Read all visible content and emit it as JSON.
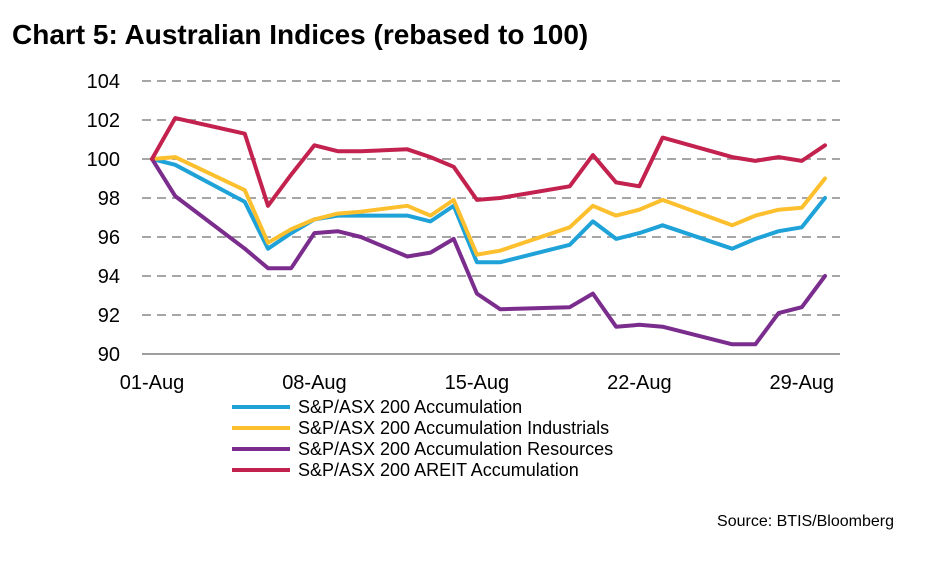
{
  "chart_data": {
    "type": "line",
    "title": "Chart 5: Australian Indices (rebased to 100)",
    "source": "Source: BTIS/Bloomberg",
    "xlabel": "",
    "ylabel": "",
    "ylim": [
      90,
      104
    ],
    "yticks": [
      "90",
      "92",
      "94",
      "96",
      "98",
      "100",
      "102",
      "104"
    ],
    "xticks": [
      {
        "day": 0,
        "label": "01-Aug"
      },
      {
        "day": 7,
        "label": "08-Aug"
      },
      {
        "day": 14,
        "label": "15-Aug"
      },
      {
        "day": 21,
        "label": "22-Aug"
      },
      {
        "day": 28,
        "label": "29-Aug"
      }
    ],
    "grid": true,
    "legend_position": "bottom",
    "x": [
      0,
      1,
      4,
      5,
      6,
      7,
      8,
      9,
      11,
      12,
      13,
      14,
      15,
      18,
      19,
      20,
      21,
      22,
      25,
      26,
      27,
      28,
      29
    ],
    "series": [
      {
        "name": "S&P/ASX 200 Accumulation",
        "color": "#1ea2d8",
        "values": [
          100,
          99.7,
          97.8,
          95.4,
          96.2,
          96.9,
          97.1,
          97.1,
          97.1,
          96.8,
          97.6,
          94.7,
          94.7,
          95.6,
          96.8,
          95.9,
          96.2,
          96.6,
          95.4,
          95.9,
          96.3,
          96.5,
          98.0
        ]
      },
      {
        "name": "S&P/ASX 200 Accumulation Industrials",
        "color": "#fcbf2e",
        "values": [
          100,
          100.1,
          98.4,
          95.7,
          96.4,
          96.9,
          97.2,
          97.3,
          97.6,
          97.1,
          97.9,
          95.1,
          95.3,
          96.5,
          97.6,
          97.1,
          97.4,
          97.9,
          96.6,
          97.1,
          97.4,
          97.5,
          99.0
        ]
      },
      {
        "name": "S&P/ASX 200 Accumulation Resources",
        "color": "#7b2d8e",
        "values": [
          100,
          98.1,
          95.4,
          94.4,
          94.4,
          96.2,
          96.3,
          96.0,
          95.0,
          95.2,
          95.9,
          93.1,
          92.3,
          92.4,
          93.1,
          91.4,
          91.5,
          91.4,
          90.5,
          90.5,
          92.1,
          92.4,
          94.0
        ]
      },
      {
        "name": "S&P/ASX 200 AREIT Accumulation",
        "color": "#c3224f",
        "values": [
          100,
          102.1,
          101.3,
          97.6,
          99.2,
          100.7,
          100.4,
          100.4,
          100.5,
          100.1,
          99.6,
          97.9,
          98.0,
          98.6,
          100.2,
          98.8,
          98.6,
          101.1,
          100.1,
          99.9,
          100.1,
          99.9,
          100.7
        ]
      }
    ]
  }
}
